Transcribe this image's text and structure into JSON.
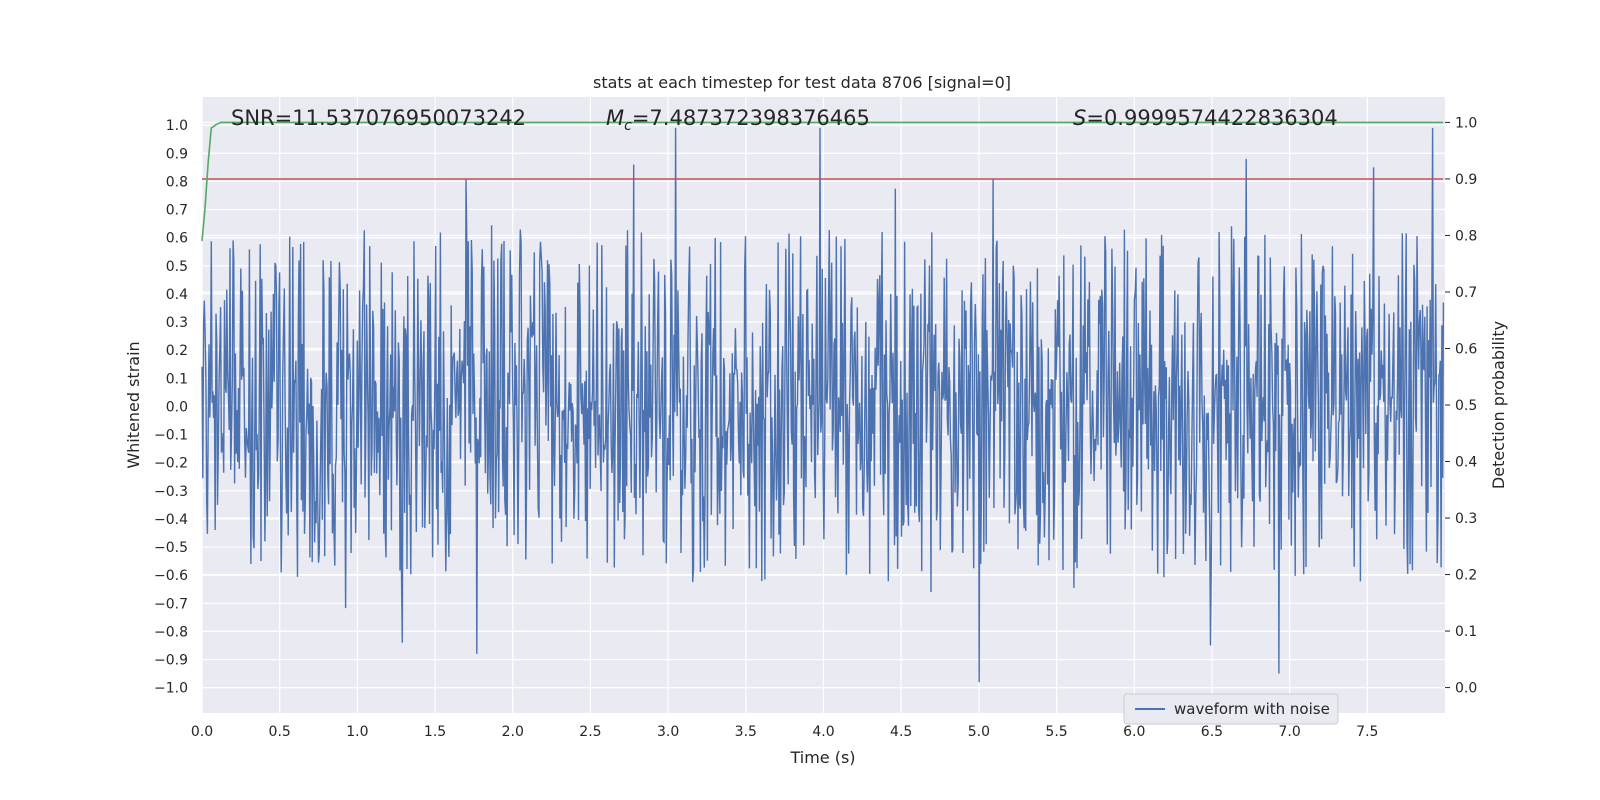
{
  "chart_data": {
    "type": "line",
    "title": "stats at each timestep for test data 8706 [signal=0]",
    "xlabel": "Time (s)",
    "ylabel": "Whitened strain",
    "y2label": "Detection probability",
    "xlim": [
      0.0,
      8.0
    ],
    "ylim": [
      -1.09,
      1.1
    ],
    "y2lim": [
      -0.045,
      1.045
    ],
    "x_ticks": [
      0.0,
      0.5,
      1.0,
      1.5,
      2.0,
      2.5,
      3.0,
      3.5,
      4.0,
      4.5,
      5.0,
      5.5,
      6.0,
      6.5,
      7.0,
      7.5
    ],
    "x_tick_labels": [
      "0.0",
      "0.5",
      "1.0",
      "1.5",
      "2.0",
      "2.5",
      "3.0",
      "3.5",
      "4.0",
      "4.5",
      "5.0",
      "5.5",
      "6.0",
      "6.5",
      "7.0",
      "7.5"
    ],
    "y_ticks": [
      1.0,
      0.9,
      0.8,
      0.7,
      0.6,
      0.5,
      0.4,
      0.3,
      0.2,
      0.1,
      0.0,
      -0.1,
      -0.2,
      -0.3,
      -0.4,
      -0.5,
      -0.6,
      -0.7,
      -0.8,
      -0.9,
      -1.0
    ],
    "y_tick_labels": [
      "1.0",
      "0.9",
      "0.8",
      "0.7",
      "0.6",
      "0.5",
      "0.4",
      "0.3",
      "0.2",
      "0.1",
      "0.0",
      "−0.1",
      "−0.2",
      "−0.3",
      "−0.4",
      "−0.5",
      "−0.6",
      "−0.7",
      "−0.8",
      "−0.9",
      "−1.0"
    ],
    "y2_ticks": [
      1.0,
      0.9,
      0.8,
      0.7,
      0.6,
      0.5,
      0.4,
      0.3,
      0.2,
      0.1,
      0.0
    ],
    "y2_tick_labels": [
      "1.0",
      "0.9",
      "0.8",
      "0.7",
      "0.6",
      "0.5",
      "0.4",
      "0.3",
      "0.2",
      "0.1",
      "0.0"
    ],
    "grid": true,
    "annotations": {
      "snr": "SNR=11.537076950073242",
      "mc_prefix": "M",
      "mc_sub": "c",
      "mc_value": "=7.487372398376465",
      "s_prefix": "S",
      "s_value": "=0.9999574422836304"
    },
    "legend": {
      "label": "waveform with noise",
      "position": "bottom-right"
    },
    "series": [
      {
        "name": "waveform with noise",
        "axis": "left",
        "color": "#4c72b0",
        "n_samples": 1600,
        "t_end": 7.99,
        "typical_amplitude": 0.2,
        "spike_max": 0.99,
        "spike_min": -0.98,
        "notable_peaks": [
          [
            3.05,
            0.99
          ],
          [
            3.98,
            0.99
          ],
          [
            7.92,
            0.99
          ],
          [
            2.78,
            0.86
          ],
          [
            6.72,
            0.88
          ],
          [
            7.54,
            0.85
          ],
          [
            1.7,
            0.81
          ],
          [
            5.09,
            0.81
          ],
          [
            5.0,
            -0.98
          ],
          [
            6.93,
            -0.95
          ],
          [
            1.77,
            -0.88
          ],
          [
            6.49,
            -0.85
          ],
          [
            1.29,
            -0.84
          ]
        ]
      },
      {
        "name": "detection probability",
        "axis": "right",
        "color": "#55a868",
        "x": [
          0.0,
          0.02,
          0.04,
          0.06,
          0.09,
          0.12,
          0.15,
          7.99
        ],
        "y": [
          0.79,
          0.85,
          0.93,
          0.99,
          0.996,
          1.0,
          1.0,
          1.0
        ]
      },
      {
        "name": "threshold",
        "axis": "right",
        "color": "#c44e52",
        "x": [
          0.0,
          7.99
        ],
        "y": [
          0.9,
          0.9
        ]
      }
    ]
  }
}
